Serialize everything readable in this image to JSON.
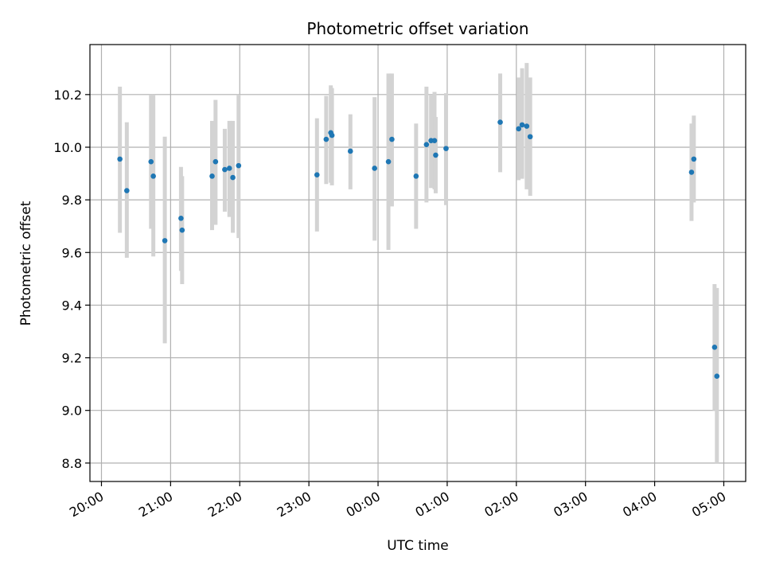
{
  "chart_data": {
    "type": "scatter",
    "title": "Photometric offset variation",
    "xlabel": "UTC time",
    "ylabel": "Photometric offset",
    "x_tick_labels": [
      "20:00",
      "21:00",
      "22:00",
      "23:00",
      "00:00",
      "01:00",
      "02:00",
      "03:00",
      "04:00",
      "05:00"
    ],
    "y_tick_labels": [
      "8.8",
      "9.0",
      "9.2",
      "9.4",
      "9.6",
      "9.8",
      "10.0",
      "10.2"
    ],
    "x_unit": "UTC time",
    "xlim": [
      "19:50",
      "05:19"
    ],
    "ylim": [
      8.73,
      10.39
    ],
    "grid": true,
    "colors": {
      "point": "#1f77b4",
      "errorbar": "#d3d3d3",
      "grid": "#b0b0b0"
    },
    "points": [
      {
        "t": "20:16",
        "y": 9.955,
        "lo": 9.675,
        "hi": 10.23
      },
      {
        "t": "20:22",
        "y": 9.835,
        "lo": 9.58,
        "hi": 10.095
      },
      {
        "t": "20:43",
        "y": 9.945,
        "lo": 9.69,
        "hi": 10.2
      },
      {
        "t": "20:45",
        "y": 9.89,
        "lo": 9.585,
        "hi": 10.2
      },
      {
        "t": "20:55",
        "y": 9.645,
        "lo": 9.255,
        "hi": 10.04
      },
      {
        "t": "21:09",
        "y": 9.73,
        "lo": 9.53,
        "hi": 9.925
      },
      {
        "t": "21:10",
        "y": 9.685,
        "lo": 9.48,
        "hi": 9.89
      },
      {
        "t": "21:36",
        "y": 9.89,
        "lo": 9.685,
        "hi": 10.1
      },
      {
        "t": "21:39",
        "y": 9.945,
        "lo": 9.705,
        "hi": 10.18
      },
      {
        "t": "21:47",
        "y": 9.915,
        "lo": 9.755,
        "hi": 10.07
      },
      {
        "t": "21:51",
        "y": 9.92,
        "lo": 9.735,
        "hi": 10.1
      },
      {
        "t": "21:54",
        "y": 9.885,
        "lo": 9.675,
        "hi": 10.1
      },
      {
        "t": "21:59",
        "y": 9.93,
        "lo": 9.655,
        "hi": 10.2
      },
      {
        "t": "23:07",
        "y": 9.895,
        "lo": 9.68,
        "hi": 10.11
      },
      {
        "t": "23:15",
        "y": 10.03,
        "lo": 9.86,
        "hi": 10.195
      },
      {
        "t": "23:19",
        "y": 10.055,
        "lo": 9.865,
        "hi": 10.235
      },
      {
        "t": "23:20",
        "y": 10.045,
        "lo": 9.855,
        "hi": 10.225
      },
      {
        "t": "23:36",
        "y": 9.985,
        "lo": 9.84,
        "hi": 10.125
      },
      {
        "t": "23:57",
        "y": 9.92,
        "lo": 9.645,
        "hi": 10.19
      },
      {
        "t": "00:09",
        "y": 9.945,
        "lo": 9.61,
        "hi": 10.28
      },
      {
        "t": "00:12",
        "y": 10.03,
        "lo": 9.775,
        "hi": 10.28
      },
      {
        "t": "00:33",
        "y": 9.89,
        "lo": 9.69,
        "hi": 10.09
      },
      {
        "t": "00:42",
        "y": 10.01,
        "lo": 9.79,
        "hi": 10.23
      },
      {
        "t": "00:46",
        "y": 10.025,
        "lo": 9.845,
        "hi": 10.2
      },
      {
        "t": "00:49",
        "y": 10.025,
        "lo": 9.84,
        "hi": 10.21
      },
      {
        "t": "00:50",
        "y": 9.97,
        "lo": 9.825,
        "hi": 10.115
      },
      {
        "t": "00:59",
        "y": 9.995,
        "lo": 9.78,
        "hi": 10.205
      },
      {
        "t": "01:46",
        "y": 10.095,
        "lo": 9.905,
        "hi": 10.28
      },
      {
        "t": "02:02",
        "y": 10.07,
        "lo": 9.875,
        "hi": 10.265
      },
      {
        "t": "02:05",
        "y": 10.085,
        "lo": 9.88,
        "hi": 10.3
      },
      {
        "t": "02:09",
        "y": 10.08,
        "lo": 9.84,
        "hi": 10.32
      },
      {
        "t": "02:12",
        "y": 10.04,
        "lo": 9.815,
        "hi": 10.265
      },
      {
        "t": "04:32",
        "y": 9.905,
        "lo": 9.72,
        "hi": 10.09
      },
      {
        "t": "04:34",
        "y": 9.955,
        "lo": 9.79,
        "hi": 10.12
      },
      {
        "t": "04:52",
        "y": 9.24,
        "lo": 9.0,
        "hi": 9.48
      },
      {
        "t": "04:54",
        "y": 9.13,
        "lo": 8.8,
        "hi": 9.465
      }
    ]
  }
}
